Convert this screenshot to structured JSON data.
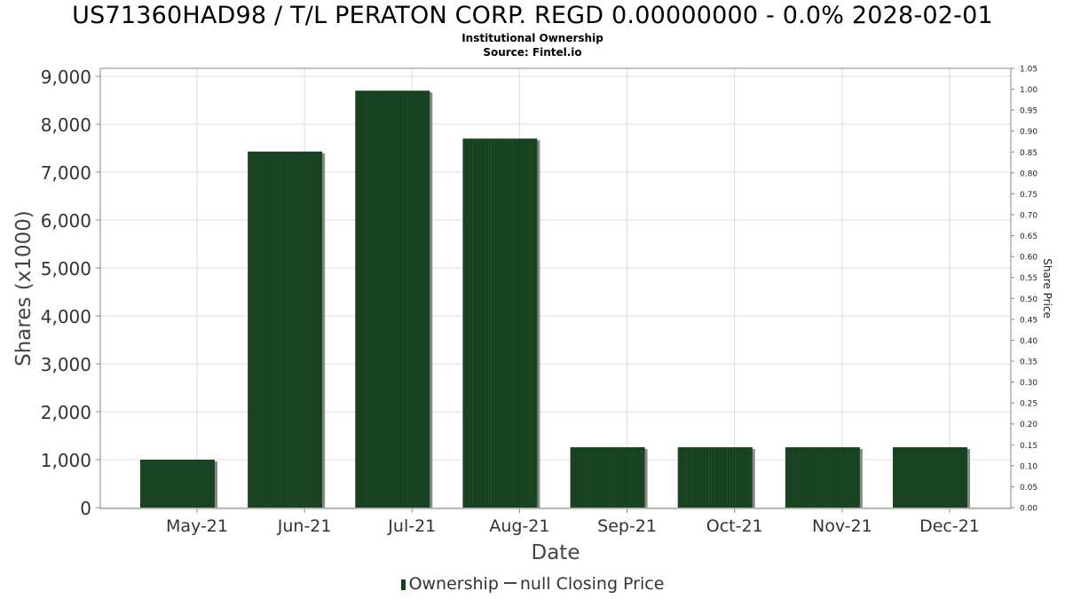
{
  "header": {
    "title": "US71360HAD98 / T/L PERATON CORP. REGD 0.00000000 - 0.0% 2028-02-01",
    "subtitle": "Institutional Ownership",
    "source": "Source: Fintel.io"
  },
  "legend": {
    "ownership": "Ownership",
    "price": "null Closing Price"
  },
  "colors": {
    "bar": "#17401f",
    "bar_shadow": "#8a8a8a",
    "grid": "#dddddd",
    "axis": "#888888"
  },
  "chart_data": {
    "type": "bar",
    "xlabel": "Date",
    "ylabel": "Shares (x1000)",
    "y2label": "Share Price",
    "categories": [
      "May-21",
      "Jun-21",
      "Jul-21",
      "Aug-21",
      "Sep-21",
      "Oct-21",
      "Nov-21",
      "Dec-21"
    ],
    "series": [
      {
        "name": "Ownership",
        "values": [
          1000,
          7430,
          8700,
          7700,
          1260,
          1260,
          1260,
          1260
        ]
      }
    ],
    "ylim": [
      0,
      9100
    ],
    "yticks": [
      0,
      1000,
      2000,
      3000,
      4000,
      5000,
      6000,
      7000,
      8000,
      9000
    ],
    "ytick_labels": [
      "0",
      "1,000",
      "2,000",
      "3,000",
      "4,000",
      "5,000",
      "6,000",
      "7,000",
      "8,000",
      "9,000"
    ],
    "y2lim": [
      0,
      1.05
    ],
    "y2ticks": [
      "0.00",
      "0.05",
      "0.10",
      "0.15",
      "0.20",
      "0.25",
      "0.30",
      "0.35",
      "0.40",
      "0.45",
      "0.50",
      "0.55",
      "0.60",
      "0.65",
      "0.70",
      "0.75",
      "0.80",
      "0.85",
      "0.90",
      "0.95",
      "1.00",
      "1.05"
    ],
    "grid": true,
    "legend_position": "bottom"
  }
}
